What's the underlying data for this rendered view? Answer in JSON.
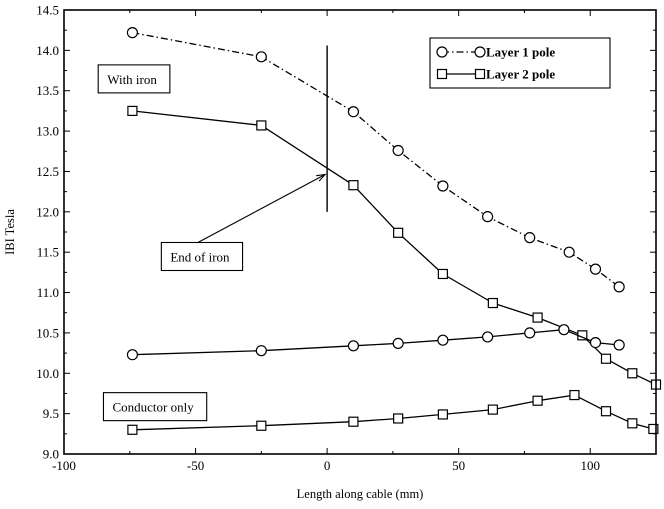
{
  "chart_data": {
    "type": "line",
    "xlabel": "Length along cable (mm)",
    "ylabel": "IBI Tesla",
    "xlim": [
      -100,
      125
    ],
    "ylim": [
      9.0,
      14.5
    ],
    "xticks": [
      -100,
      -50,
      0,
      50,
      100
    ],
    "yticks": [
      9.0,
      9.5,
      10.0,
      10.5,
      11.0,
      11.5,
      12.0,
      12.5,
      13.0,
      13.5,
      14.0,
      14.5
    ],
    "grid": false,
    "legend_position": "top-right",
    "series": [
      {
        "name": "Layer 1 pole",
        "group": "With iron",
        "marker": "circle",
        "style": "dash-dot",
        "points": [
          [
            -74,
            14.22
          ],
          [
            -25,
            13.92
          ],
          [
            10,
            13.24
          ],
          [
            27,
            12.76
          ],
          [
            44,
            12.32
          ],
          [
            61,
            11.94
          ],
          [
            77,
            11.68
          ],
          [
            92,
            11.5
          ],
          [
            102,
            11.29
          ],
          [
            111,
            11.07
          ]
        ]
      },
      {
        "name": "Layer 2 pole",
        "group": "With iron",
        "marker": "square",
        "style": "solid",
        "points": [
          [
            -74,
            13.25
          ],
          [
            -25,
            13.07
          ],
          [
            10,
            12.33
          ],
          [
            27,
            11.74
          ],
          [
            44,
            11.23
          ],
          [
            63,
            10.87
          ],
          [
            80,
            10.69
          ],
          [
            97,
            10.47
          ],
          [
            106,
            10.18
          ],
          [
            116,
            10.0
          ],
          [
            125,
            9.86
          ]
        ]
      },
      {
        "name": "Layer 1 pole",
        "group": "Conductor only",
        "marker": "circle",
        "style": "solid",
        "points": [
          [
            -74,
            10.23
          ],
          [
            -25,
            10.28
          ],
          [
            10,
            10.34
          ],
          [
            27,
            10.37
          ],
          [
            44,
            10.41
          ],
          [
            61,
            10.45
          ],
          [
            77,
            10.5
          ],
          [
            90,
            10.54
          ],
          [
            102,
            10.38
          ],
          [
            111,
            10.35
          ]
        ]
      },
      {
        "name": "Layer 2 pole",
        "group": "Conductor only",
        "marker": "square",
        "style": "solid",
        "points": [
          [
            -74,
            9.3
          ],
          [
            -25,
            9.35
          ],
          [
            10,
            9.4
          ],
          [
            27,
            9.44
          ],
          [
            44,
            9.49
          ],
          [
            63,
            9.55
          ],
          [
            80,
            9.66
          ],
          [
            94,
            9.73
          ],
          [
            106,
            9.53
          ],
          [
            116,
            9.38
          ],
          [
            124,
            9.31
          ]
        ]
      }
    ],
    "iron_end_line": {
      "x": 0,
      "y_from": 12.0,
      "y_to": 14.06
    },
    "annotations": [
      {
        "id": "with-iron",
        "text": "With iron",
        "anchor": [
          -87,
          13.82
        ]
      },
      {
        "id": "end-of-iron",
        "text": "End of iron",
        "anchor": [
          -63,
          11.62
        ],
        "arrow_to": [
          0,
          12.5
        ]
      },
      {
        "id": "conductor-only",
        "text": "Conductor only",
        "anchor": [
          -85,
          9.76
        ]
      }
    ],
    "legend": [
      {
        "label": "Layer 1 pole",
        "marker": "circle",
        "style": "dash-dot"
      },
      {
        "label": "Layer 2 pole",
        "marker": "square",
        "style": "solid"
      }
    ]
  }
}
